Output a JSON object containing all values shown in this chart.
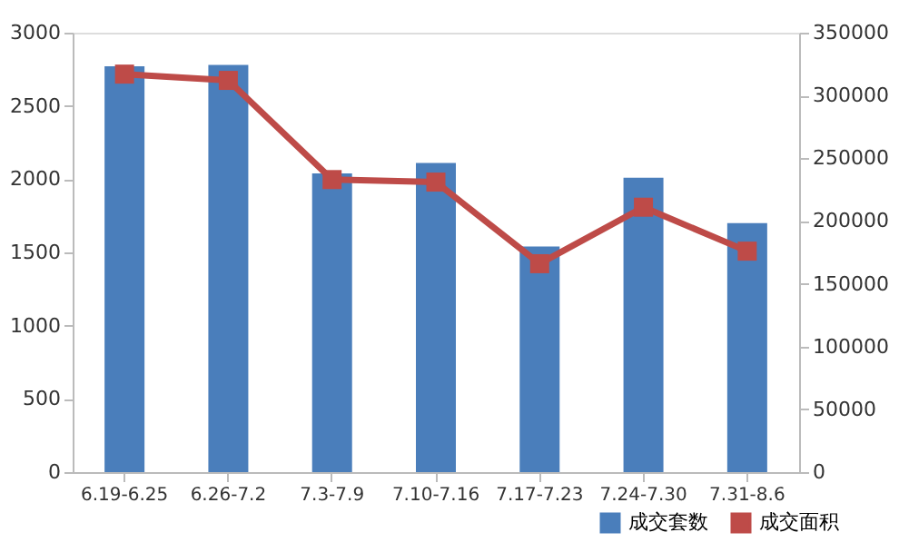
{
  "chart_data": {
    "type": "bar",
    "categories": [
      "6.19-6.25",
      "6.26-7.2",
      "7.3-7.9",
      "7.10-7.16",
      "7.17-7.23",
      "7.24-7.30",
      "7.31-8.6"
    ],
    "series": [
      {
        "name": "成交套数",
        "color": "#4a7ebb",
        "values": [
          2770,
          2780,
          2040,
          2110,
          1540,
          2010,
          1700
        ]
      },
      {
        "name": "成交面积",
        "type": "line",
        "axis": "y2",
        "color": "#be4b48",
        "marker": "square",
        "values": [
          317000,
          312000,
          233000,
          231000,
          166000,
          211000,
          176000
        ]
      }
    ],
    "ylim": [
      0,
      3000
    ],
    "yticks": [
      0,
      500,
      1000,
      1500,
      2000,
      2500,
      3000
    ],
    "y2lim": [
      0,
      350000
    ],
    "y2ticks": [
      0,
      50000,
      100000,
      150000,
      200000,
      250000,
      300000,
      350000
    ],
    "grid": false,
    "legend": "bottom right"
  }
}
